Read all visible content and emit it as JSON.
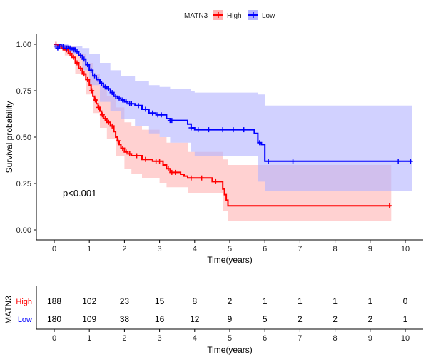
{
  "chart_data": {
    "type": "line",
    "legend": {
      "title": "MATN3",
      "position": "top",
      "entries": [
        {
          "name": "High",
          "color": "#ff0000",
          "fill": "#ffb3b3"
        },
        {
          "name": "Low",
          "color": "#0000ff",
          "fill": "#b3b3ff"
        }
      ]
    },
    "xlabel": "Time(years)",
    "ylabel": "Survival probability",
    "xlim": [
      -0.5,
      10.5
    ],
    "ylim": [
      -0.05,
      1.05
    ],
    "x_ticks": [
      "0",
      "1",
      "2",
      "3",
      "4",
      "5",
      "6",
      "7",
      "8",
      "9",
      "10"
    ],
    "y_ticks": [
      "0.00",
      "0.25",
      "0.50",
      "0.75",
      "1.00"
    ],
    "annotation": "p<0.001",
    "series": [
      {
        "name": "High",
        "color": "#ff0000",
        "fill": "#ffb3b3",
        "steps": [
          [
            0,
            1.0
          ],
          [
            0.1,
            0.99
          ],
          [
            0.2,
            0.98
          ],
          [
            0.3,
            0.97
          ],
          [
            0.4,
            0.95
          ],
          [
            0.5,
            0.93
          ],
          [
            0.6,
            0.9
          ],
          [
            0.7,
            0.87
          ],
          [
            0.8,
            0.84
          ],
          [
            0.9,
            0.81
          ],
          [
            1.0,
            0.78
          ],
          [
            1.05,
            0.75
          ],
          [
            1.1,
            0.72
          ],
          [
            1.15,
            0.7
          ],
          [
            1.2,
            0.68
          ],
          [
            1.25,
            0.66
          ],
          [
            1.3,
            0.64
          ],
          [
            1.35,
            0.62
          ],
          [
            1.4,
            0.6
          ],
          [
            1.5,
            0.58
          ],
          [
            1.6,
            0.56
          ],
          [
            1.7,
            0.53
          ],
          [
            1.75,
            0.5
          ],
          [
            1.8,
            0.48
          ],
          [
            1.85,
            0.46
          ],
          [
            1.9,
            0.44
          ],
          [
            2.0,
            0.42
          ],
          [
            2.1,
            0.41
          ],
          [
            2.2,
            0.4
          ],
          [
            2.5,
            0.38
          ],
          [
            2.8,
            0.37
          ],
          [
            3.1,
            0.35
          ],
          [
            3.2,
            0.33
          ],
          [
            3.3,
            0.31
          ],
          [
            3.6,
            0.3
          ],
          [
            3.7,
            0.29
          ],
          [
            3.8,
            0.28
          ],
          [
            4.5,
            0.26
          ],
          [
            4.8,
            0.22
          ],
          [
            4.85,
            0.19
          ],
          [
            4.9,
            0.16
          ],
          [
            4.95,
            0.13
          ],
          [
            9.6,
            0.13
          ]
        ],
        "upper": [
          [
            0,
            1.0
          ],
          [
            0.3,
            0.99
          ],
          [
            0.6,
            0.95
          ],
          [
            0.9,
            0.9
          ],
          [
            1.1,
            0.84
          ],
          [
            1.3,
            0.78
          ],
          [
            1.5,
            0.72
          ],
          [
            1.75,
            0.66
          ],
          [
            2.0,
            0.58
          ],
          [
            2.2,
            0.56
          ],
          [
            2.5,
            0.54
          ],
          [
            3.0,
            0.5
          ],
          [
            3.2,
            0.47
          ],
          [
            3.8,
            0.42
          ],
          [
            4.8,
            0.38
          ],
          [
            4.95,
            0.35
          ],
          [
            9.6,
            0.35
          ]
        ],
        "lower": [
          [
            0,
            0.98
          ],
          [
            0.3,
            0.94
          ],
          [
            0.6,
            0.84
          ],
          [
            0.9,
            0.73
          ],
          [
            1.1,
            0.63
          ],
          [
            1.3,
            0.55
          ],
          [
            1.5,
            0.49
          ],
          [
            1.75,
            0.4
          ],
          [
            2.0,
            0.33
          ],
          [
            2.2,
            0.3
          ],
          [
            2.5,
            0.28
          ],
          [
            3.0,
            0.25
          ],
          [
            3.2,
            0.23
          ],
          [
            3.8,
            0.2
          ],
          [
            4.8,
            0.1
          ],
          [
            4.95,
            0.05
          ],
          [
            9.6,
            0.05
          ]
        ],
        "censor": [
          [
            0.05,
            1.0
          ],
          [
            0.15,
            0.99
          ],
          [
            0.25,
            0.98
          ],
          [
            0.35,
            0.97
          ],
          [
            0.45,
            0.95
          ],
          [
            0.55,
            0.93
          ],
          [
            0.65,
            0.9
          ],
          [
            0.75,
            0.87
          ],
          [
            0.85,
            0.84
          ],
          [
            0.95,
            0.81
          ],
          [
            1.07,
            0.75
          ],
          [
            1.17,
            0.7
          ],
          [
            1.27,
            0.66
          ],
          [
            1.37,
            0.62
          ],
          [
            1.45,
            0.6
          ],
          [
            1.55,
            0.58
          ],
          [
            1.65,
            0.56
          ],
          [
            1.82,
            0.48
          ],
          [
            1.95,
            0.44
          ],
          [
            2.05,
            0.42
          ],
          [
            2.15,
            0.41
          ],
          [
            2.35,
            0.4
          ],
          [
            2.6,
            0.38
          ],
          [
            2.9,
            0.37
          ],
          [
            3.0,
            0.37
          ],
          [
            3.25,
            0.33
          ],
          [
            3.35,
            0.31
          ],
          [
            3.45,
            0.31
          ],
          [
            3.9,
            0.28
          ],
          [
            4.2,
            0.28
          ],
          [
            4.6,
            0.26
          ],
          [
            9.55,
            0.13
          ]
        ]
      },
      {
        "name": "Low",
        "color": "#0000ff",
        "fill": "#b3b3ff",
        "steps": [
          [
            0,
            1.0
          ],
          [
            0.2,
            0.99
          ],
          [
            0.4,
            0.98
          ],
          [
            0.6,
            0.96
          ],
          [
            0.7,
            0.94
          ],
          [
            0.8,
            0.92
          ],
          [
            0.9,
            0.89
          ],
          [
            1.0,
            0.86
          ],
          [
            1.1,
            0.83
          ],
          [
            1.2,
            0.81
          ],
          [
            1.3,
            0.79
          ],
          [
            1.4,
            0.77
          ],
          [
            1.5,
            0.76
          ],
          [
            1.6,
            0.74
          ],
          [
            1.7,
            0.72
          ],
          [
            1.8,
            0.71
          ],
          [
            1.9,
            0.7
          ],
          [
            2.0,
            0.69
          ],
          [
            2.1,
            0.68
          ],
          [
            2.3,
            0.67
          ],
          [
            2.5,
            0.65
          ],
          [
            2.7,
            0.63
          ],
          [
            2.9,
            0.62
          ],
          [
            3.2,
            0.6
          ],
          [
            3.3,
            0.59
          ],
          [
            3.8,
            0.57
          ],
          [
            3.9,
            0.55
          ],
          [
            4.0,
            0.54
          ],
          [
            5.7,
            0.52
          ],
          [
            5.8,
            0.47
          ],
          [
            5.9,
            0.46
          ],
          [
            6.0,
            0.37
          ],
          [
            10.2,
            0.37
          ]
        ],
        "upper": [
          [
            0,
            1.0
          ],
          [
            0.4,
            0.99
          ],
          [
            0.8,
            0.98
          ],
          [
            1.0,
            0.95
          ],
          [
            1.3,
            0.9
          ],
          [
            1.6,
            0.86
          ],
          [
            1.9,
            0.83
          ],
          [
            2.3,
            0.8
          ],
          [
            2.7,
            0.78
          ],
          [
            3.0,
            0.77
          ],
          [
            3.3,
            0.76
          ],
          [
            3.9,
            0.75
          ],
          [
            4.0,
            0.74
          ],
          [
            5.8,
            0.73
          ],
          [
            6.0,
            0.67
          ],
          [
            10.2,
            0.67
          ]
        ],
        "lower": [
          [
            0,
            0.98
          ],
          [
            0.4,
            0.95
          ],
          [
            0.8,
            0.86
          ],
          [
            1.0,
            0.78
          ],
          [
            1.3,
            0.69
          ],
          [
            1.6,
            0.64
          ],
          [
            1.9,
            0.6
          ],
          [
            2.3,
            0.56
          ],
          [
            2.7,
            0.52
          ],
          [
            3.0,
            0.5
          ],
          [
            3.3,
            0.47
          ],
          [
            3.9,
            0.42
          ],
          [
            4.0,
            0.4
          ],
          [
            5.8,
            0.26
          ],
          [
            6.0,
            0.21
          ],
          [
            10.2,
            0.21
          ]
        ],
        "censor": [
          [
            0.05,
            0.99
          ],
          [
            0.1,
            0.98
          ],
          [
            0.15,
            0.99
          ],
          [
            0.25,
            0.99
          ],
          [
            0.35,
            0.98
          ],
          [
            0.45,
            0.98
          ],
          [
            0.55,
            0.97
          ],
          [
            0.65,
            0.96
          ],
          [
            0.75,
            0.94
          ],
          [
            0.85,
            0.92
          ],
          [
            0.95,
            0.89
          ],
          [
            1.05,
            0.86
          ],
          [
            1.15,
            0.83
          ],
          [
            1.25,
            0.81
          ],
          [
            1.35,
            0.79
          ],
          [
            1.45,
            0.77
          ],
          [
            1.55,
            0.76
          ],
          [
            1.65,
            0.74
          ],
          [
            1.75,
            0.72
          ],
          [
            1.85,
            0.71
          ],
          [
            1.95,
            0.7
          ],
          [
            2.05,
            0.69
          ],
          [
            2.15,
            0.68
          ],
          [
            2.2,
            0.68
          ],
          [
            2.4,
            0.67
          ],
          [
            2.6,
            0.65
          ],
          [
            2.8,
            0.63
          ],
          [
            2.95,
            0.62
          ],
          [
            3.05,
            0.62
          ],
          [
            3.3,
            0.59
          ],
          [
            3.35,
            0.59
          ],
          [
            3.9,
            0.55
          ],
          [
            4.1,
            0.54
          ],
          [
            4.4,
            0.54
          ],
          [
            4.8,
            0.54
          ],
          [
            5.1,
            0.54
          ],
          [
            5.4,
            0.54
          ],
          [
            5.85,
            0.47
          ],
          [
            6.1,
            0.37
          ],
          [
            6.8,
            0.37
          ],
          [
            9.8,
            0.37
          ],
          [
            10.15,
            0.37
          ]
        ]
      }
    ],
    "risk_table": {
      "ylabel": "MATN3",
      "xlabel": "Time(years)",
      "x_ticks": [
        "0",
        "1",
        "2",
        "3",
        "4",
        "5",
        "6",
        "7",
        "8",
        "9",
        "10"
      ],
      "rows": [
        {
          "name": "High",
          "color": "#ff0000",
          "values": [
            "188",
            "102",
            "23",
            "15",
            "8",
            "2",
            "1",
            "1",
            "1",
            "1",
            "0"
          ]
        },
        {
          "name": "Low",
          "color": "#0000ff",
          "values": [
            "180",
            "109",
            "38",
            "16",
            "12",
            "9",
            "5",
            "2",
            "2",
            "2",
            "1"
          ]
        }
      ]
    }
  }
}
